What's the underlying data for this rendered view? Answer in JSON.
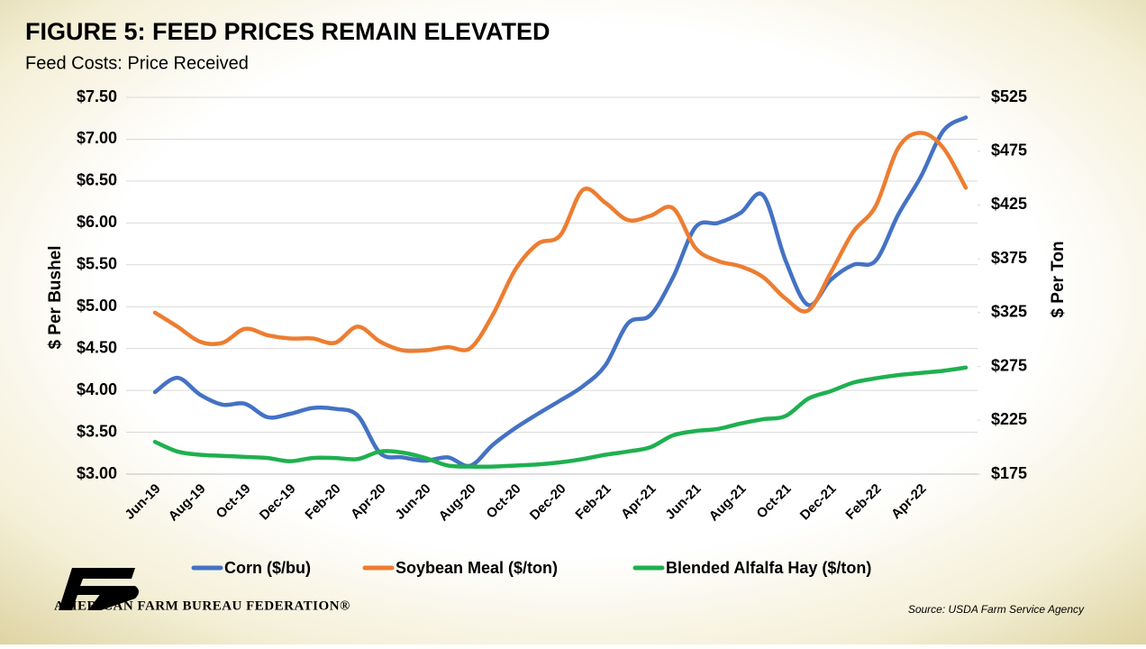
{
  "chart_data": {
    "type": "line",
    "title": "FIGURE 5: FEED PRICES REMAIN ELEVATED",
    "subtitle": "Feed Costs: Price Received",
    "y_label": "$ Per Bushel",
    "y2_label": "$ Per Ton",
    "source": "Source: USDA Farm Service Agency",
    "organization": "AMERICAN FARM BUREAU FEDERATION®",
    "categories": [
      "Jun-19",
      null,
      "Aug-19",
      null,
      "Oct-19",
      null,
      "Dec-19",
      null,
      "Feb-20",
      null,
      "Apr-20",
      null,
      "Jun-20",
      null,
      "Aug-20",
      null,
      "Oct-20",
      null,
      "Dec-20",
      null,
      "Feb-21",
      null,
      "Apr-21",
      null,
      "Jun-21",
      null,
      "Aug-21",
      null,
      "Oct-21",
      null,
      "Dec-21",
      null,
      "Feb-22",
      null,
      "Apr-22",
      null,
      null
    ],
    "series": [
      {
        "name": "Corn ($/bu)",
        "color": "#4472c4",
        "axis": "y",
        "values": [
          3.98,
          4.15,
          3.95,
          3.83,
          3.84,
          3.68,
          3.72,
          3.79,
          3.78,
          3.7,
          3.25,
          3.2,
          3.16,
          3.2,
          3.1,
          3.35,
          3.55,
          3.72,
          3.88,
          4.05,
          4.3,
          4.8,
          4.9,
          5.35,
          5.95,
          6.0,
          6.12,
          6.33,
          5.55,
          5.02,
          5.32,
          5.5,
          5.55,
          6.1,
          6.55,
          7.1,
          7.26
        ]
      },
      {
        "name": "Soybean Meal ($/ton)",
        "color": "#ed7d31",
        "axis": "y2",
        "values": [
          325,
          312,
          298,
          297,
          310,
          304,
          301,
          301,
          297,
          312,
          298,
          290,
          290,
          293,
          292,
          323,
          365,
          389,
          397,
          439,
          427,
          411,
          415,
          422,
          385,
          373,
          368,
          358,
          338,
          327,
          362,
          400,
          424,
          478,
          492,
          478,
          441
        ]
      },
      {
        "name": "Blended Alfalfa Hay ($/ton)",
        "color": "#1fb04f",
        "axis": "y2",
        "values": [
          205,
          196,
          193,
          192,
          191,
          190,
          187,
          190,
          190,
          189,
          196,
          195,
          190,
          183,
          182,
          182,
          183,
          184,
          186,
          189,
          193,
          196,
          200,
          211,
          215,
          217,
          222,
          226,
          229,
          245,
          252,
          260,
          264,
          267,
          269,
          271,
          274
        ]
      }
    ],
    "ylim": [
      3.0,
      7.5
    ],
    "yticks": [
      {
        "value": 3.0,
        "label": "$3.00"
      },
      {
        "value": 3.5,
        "label": "$3.50"
      },
      {
        "value": 4.0,
        "label": "$4.00"
      },
      {
        "value": 4.5,
        "label": "$4.50"
      },
      {
        "value": 5.0,
        "label": "$5.00"
      },
      {
        "value": 5.5,
        "label": "$5.50"
      },
      {
        "value": 6.0,
        "label": "$6.00"
      },
      {
        "value": 6.5,
        "label": "$6.50"
      },
      {
        "value": 7.0,
        "label": "$7.00"
      },
      {
        "value": 7.5,
        "label": "$7.50"
      }
    ],
    "y2lim": [
      175,
      525
    ],
    "y2ticks": [
      {
        "value": 175,
        "label": "$175"
      },
      {
        "value": 225,
        "label": "$225"
      },
      {
        "value": 275,
        "label": "$275"
      },
      {
        "value": 325,
        "label": "$325"
      },
      {
        "value": 375,
        "label": "$375"
      },
      {
        "value": 425,
        "label": "$425"
      },
      {
        "value": 475,
        "label": "$475"
      },
      {
        "value": 525,
        "label": "$525"
      }
    ],
    "grid": true,
    "legend": "bottom"
  }
}
